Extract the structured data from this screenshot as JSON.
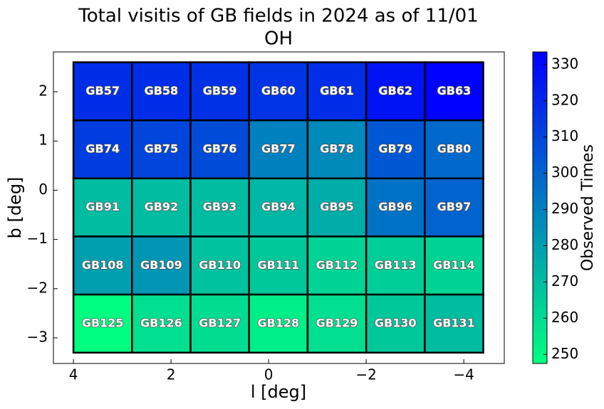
{
  "chart_data": {
    "type": "heatmap",
    "title": "Total visitis of GB fields in 2024 as of 11/01",
    "subtitle": "OH",
    "x_label": "l [deg]",
    "y_label": "b [deg]",
    "colorbar_label": "Observed Times",
    "x_edges": [
      4.0,
      2.8,
      1.6,
      0.4,
      -0.8,
      -2.0,
      -3.2,
      -4.4
    ],
    "y_edges": [
      2.6,
      1.42,
      0.24,
      -0.94,
      -2.12,
      -3.3
    ],
    "labels": [
      [
        "GB57",
        "GB58",
        "GB59",
        "GB60",
        "GB61",
        "GB62",
        "GB63"
      ],
      [
        "GB74",
        "GB75",
        "GB76",
        "GB77",
        "GB78",
        "GB79",
        "GB80"
      ],
      [
        "GB91",
        "GB92",
        "GB93",
        "GB94",
        "GB95",
        "GB96",
        "GB97"
      ],
      [
        "GB108",
        "GB109",
        "GB110",
        "GB111",
        "GB112",
        "GB113",
        "GB114"
      ],
      [
        "GB125",
        "GB126",
        "GB127",
        "GB128",
        "GB129",
        "GB130",
        "GB131"
      ]
    ],
    "values": [
      [
        318,
        318,
        317,
        316,
        318,
        327,
        333
      ],
      [
        313,
        310,
        308,
        290,
        287,
        304,
        298
      ],
      [
        270,
        270,
        270,
        272,
        275,
        295,
        300
      ],
      [
        280,
        283,
        268,
        266,
        262,
        264,
        262
      ],
      [
        248,
        258,
        259,
        253,
        258,
        266,
        270
      ]
    ],
    "xlim": [
      4.41,
      -4.83
    ],
    "xticks": [
      4,
      2,
      0,
      {
        "value": -2,
        "label": "−2"
      },
      {
        "value": -4,
        "label": "−4"
      }
    ],
    "ylim": [
      -3.52,
      2.81
    ],
    "yticks": [
      {
        "value": -3,
        "label": "−3"
      },
      {
        "value": -2,
        "label": "−2"
      },
      {
        "value": -1,
        "label": "−1"
      },
      0,
      1,
      2
    ],
    "clim": [
      247.5,
      333.5
    ],
    "cticks": [
      250,
      260,
      270,
      280,
      290,
      300,
      310,
      320,
      330
    ],
    "cmap": [
      "#00ff80",
      "#0000ff"
    ]
  }
}
